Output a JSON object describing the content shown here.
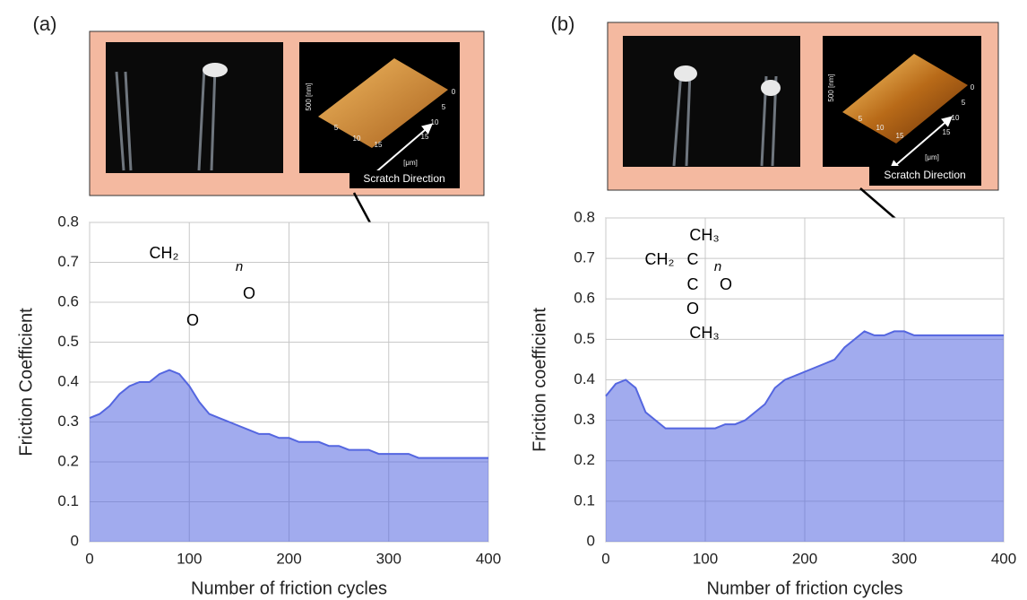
{
  "chart_data": [
    {
      "type": "area",
      "panel": "(a)",
      "ylabel": "Friction Coefficient",
      "xlabel": "Number of friction cycles",
      "x": [
        0,
        10,
        20,
        30,
        40,
        50,
        60,
        70,
        80,
        90,
        100,
        110,
        120,
        130,
        140,
        150,
        160,
        170,
        180,
        190,
        200,
        210,
        220,
        230,
        240,
        250,
        260,
        270,
        280,
        290,
        300,
        310,
        320,
        330,
        340,
        350,
        360,
        370,
        380,
        390,
        400
      ],
      "values": [
        0.31,
        0.32,
        0.34,
        0.37,
        0.39,
        0.4,
        0.4,
        0.42,
        0.43,
        0.42,
        0.39,
        0.35,
        0.32,
        0.31,
        0.3,
        0.29,
        0.28,
        0.27,
        0.27,
        0.26,
        0.26,
        0.25,
        0.25,
        0.25,
        0.24,
        0.24,
        0.23,
        0.23,
        0.23,
        0.22,
        0.22,
        0.22,
        0.22,
        0.21,
        0.21,
        0.21,
        0.21,
        0.21,
        0.21,
        0.21,
        0.21
      ],
      "color": "#5466e0",
      "xlim": [
        0,
        400
      ],
      "ylim": [
        0,
        0.8
      ],
      "xticks": [
        0,
        100,
        200,
        300,
        400
      ],
      "yticks": [
        0,
        0.1,
        0.2,
        0.3,
        0.4,
        0.5,
        0.6,
        0.7,
        0.8
      ],
      "grid": true,
      "annotations": [
        "CH₂",
        "n",
        "O",
        "O"
      ],
      "inset": {
        "scale_label": "500 [nm]",
        "unit": "[μm]",
        "ticks": [
          "0",
          "5",
          "10",
          "15"
        ],
        "caption": "Scratch Direction"
      }
    },
    {
      "type": "area",
      "panel": "(b)",
      "ylabel": "Friction coefficient",
      "xlabel": "Number of friction cycles",
      "x": [
        0,
        10,
        20,
        30,
        40,
        50,
        60,
        70,
        80,
        90,
        100,
        110,
        120,
        130,
        140,
        150,
        160,
        170,
        180,
        190,
        200,
        210,
        220,
        230,
        240,
        250,
        260,
        270,
        280,
        290,
        300,
        310,
        320,
        330,
        340,
        350,
        360,
        370,
        380,
        390,
        400
      ],
      "values": [
        0.36,
        0.39,
        0.4,
        0.38,
        0.32,
        0.3,
        0.28,
        0.28,
        0.28,
        0.28,
        0.28,
        0.28,
        0.29,
        0.29,
        0.3,
        0.32,
        0.34,
        0.38,
        0.4,
        0.41,
        0.42,
        0.43,
        0.44,
        0.45,
        0.48,
        0.5,
        0.52,
        0.51,
        0.51,
        0.52,
        0.52,
        0.51,
        0.51,
        0.51,
        0.51,
        0.51,
        0.51,
        0.51,
        0.51,
        0.51,
        0.51
      ],
      "color": "#5466e0",
      "xlim": [
        0,
        400
      ],
      "ylim": [
        0,
        0.8
      ],
      "xticks": [
        0,
        100,
        200,
        300,
        400
      ],
      "yticks": [
        0,
        0.1,
        0.2,
        0.3,
        0.4,
        0.5,
        0.6,
        0.7,
        0.8
      ],
      "grid": true,
      "annotations": [
        "CH₃",
        "CH₂",
        "C",
        "n",
        "C",
        "O",
        "O",
        "CH₃"
      ],
      "inset": {
        "scale_label": "500 [nm]",
        "unit": "[μm]",
        "ticks": [
          "0",
          "5",
          "10",
          "15"
        ],
        "caption": "Scratch Direction"
      }
    }
  ]
}
